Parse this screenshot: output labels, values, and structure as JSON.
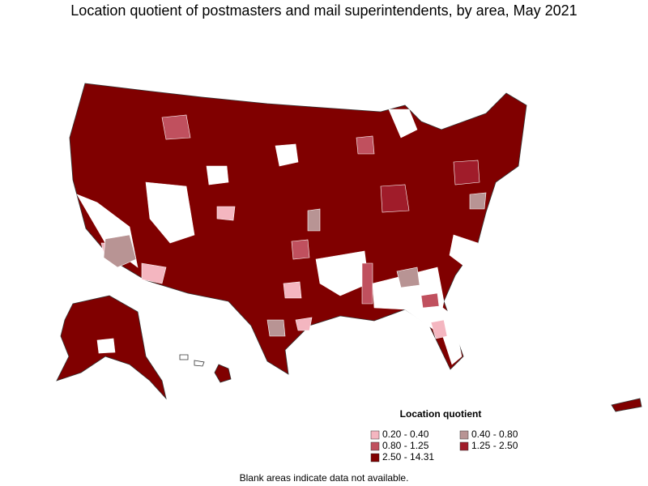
{
  "title": "Location quotient of postmasters and mail superintendents, by area, May 2021",
  "legend": {
    "title": "Location quotient",
    "items": [
      {
        "label": "0.20 - 0.40",
        "color": "#f4b6c0"
      },
      {
        "label": "0.40 - 0.80",
        "color": "#b89494"
      },
      {
        "label": "0.80 - 1.25",
        "color": "#c0505e"
      },
      {
        "label": "1.25 - 2.50",
        "color": "#a01c2a"
      },
      {
        "label": "2.50 - 14.31",
        "color": "#800000"
      }
    ]
  },
  "footnote": "Blank areas indicate data not available."
}
